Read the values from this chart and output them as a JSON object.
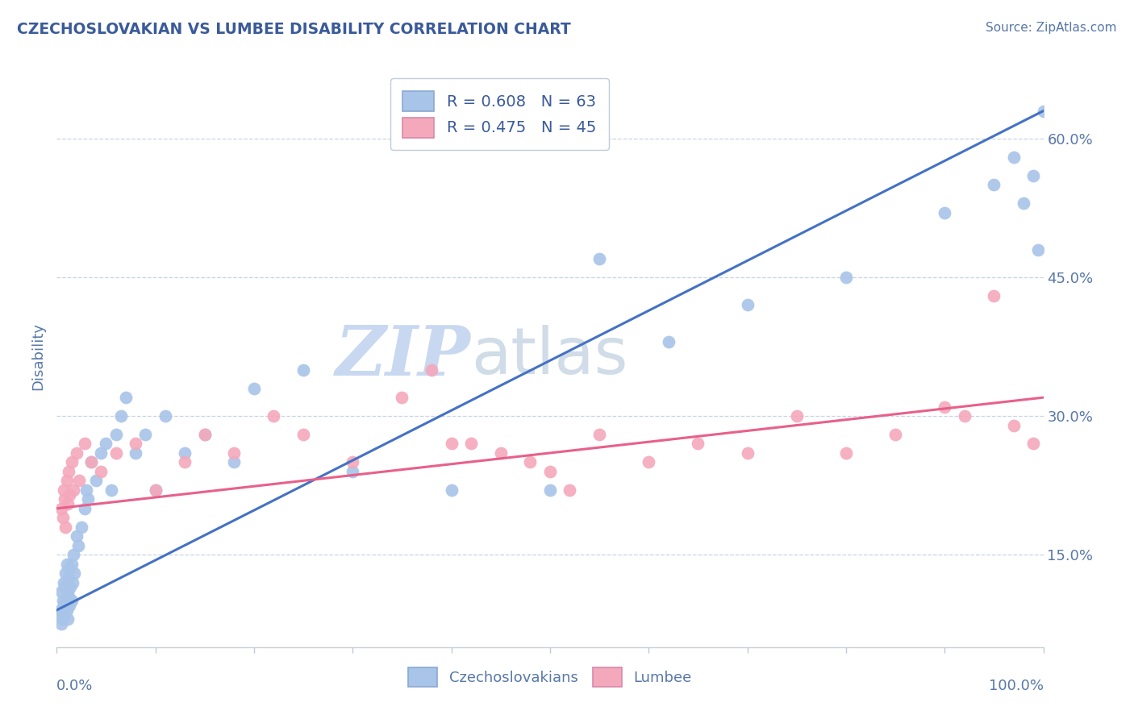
{
  "title": "CZECHOSLOVAKIAN VS LUMBEE DISABILITY CORRELATION CHART",
  "source": "Source: ZipAtlas.com",
  "ylabel": "Disability",
  "xlim": [
    0,
    100
  ],
  "ylim": [
    5,
    68
  ],
  "yticks": [
    15.0,
    30.0,
    45.0,
    60.0
  ],
  "blue_R": 0.608,
  "blue_N": 63,
  "pink_R": 0.475,
  "pink_N": 45,
  "blue_color": "#a8c4e8",
  "pink_color": "#f4a8bc",
  "blue_line_color": "#4472c4",
  "pink_line_color": "#e8608a",
  "watermark_zip": "ZIP",
  "watermark_atlas": "atlas",
  "legend_label_blue": "Czechoslovakians",
  "legend_label_pink": "Lumbee",
  "blue_line_y0": 9.0,
  "blue_line_y100": 63.0,
  "pink_line_y0": 20.0,
  "pink_line_y100": 32.0,
  "blue_scatter_x": [
    0.3,
    0.4,
    0.5,
    0.5,
    0.6,
    0.6,
    0.7,
    0.7,
    0.8,
    0.8,
    0.9,
    0.9,
    1.0,
    1.0,
    1.1,
    1.1,
    1.2,
    1.2,
    1.3,
    1.3,
    1.4,
    1.5,
    1.5,
    1.6,
    1.7,
    1.8,
    2.0,
    2.2,
    2.5,
    2.8,
    3.0,
    3.2,
    3.5,
    4.0,
    4.5,
    5.0,
    5.5,
    6.0,
    6.5,
    7.0,
    8.0,
    9.0,
    10.0,
    11.0,
    13.0,
    15.0,
    18.0,
    20.0,
    25.0,
    30.0,
    40.0,
    50.0,
    55.0,
    62.0,
    70.0,
    80.0,
    90.0,
    95.0,
    97.0,
    98.0,
    99.0,
    99.5,
    100.0
  ],
  "blue_scatter_y": [
    8.5,
    9.0,
    7.5,
    11.0,
    10.0,
    8.0,
    12.0,
    9.5,
    11.5,
    8.5,
    10.0,
    13.0,
    9.0,
    14.0,
    11.0,
    8.0,
    12.5,
    10.5,
    13.5,
    9.5,
    11.5,
    14.0,
    10.0,
    12.0,
    15.0,
    13.0,
    17.0,
    16.0,
    18.0,
    20.0,
    22.0,
    21.0,
    25.0,
    23.0,
    26.0,
    27.0,
    22.0,
    28.0,
    30.0,
    32.0,
    26.0,
    28.0,
    22.0,
    30.0,
    26.0,
    28.0,
    25.0,
    33.0,
    35.0,
    24.0,
    22.0,
    22.0,
    47.0,
    38.0,
    42.0,
    45.0,
    52.0,
    55.0,
    58.0,
    53.0,
    56.0,
    48.0,
    63.0
  ],
  "pink_scatter_x": [
    0.5,
    0.6,
    0.7,
    0.8,
    0.9,
    1.0,
    1.1,
    1.2,
    1.3,
    1.5,
    1.7,
    2.0,
    2.3,
    2.8,
    3.5,
    4.5,
    6.0,
    8.0,
    10.0,
    13.0,
    15.0,
    18.0,
    22.0,
    25.0,
    30.0,
    35.0,
    40.0,
    45.0,
    50.0,
    55.0,
    60.0,
    65.0,
    70.0,
    75.0,
    80.0,
    85.0,
    90.0,
    92.0,
    95.0,
    97.0,
    99.0,
    38.0,
    42.0,
    48.0,
    52.0
  ],
  "pink_scatter_y": [
    20.0,
    19.0,
    22.0,
    21.0,
    18.0,
    23.0,
    20.5,
    24.0,
    21.5,
    25.0,
    22.0,
    26.0,
    23.0,
    27.0,
    25.0,
    24.0,
    26.0,
    27.0,
    22.0,
    25.0,
    28.0,
    26.0,
    30.0,
    28.0,
    25.0,
    32.0,
    27.0,
    26.0,
    24.0,
    28.0,
    25.0,
    27.0,
    26.0,
    30.0,
    26.0,
    28.0,
    31.0,
    30.0,
    43.0,
    29.0,
    27.0,
    35.0,
    27.0,
    25.0,
    22.0
  ],
  "background_color": "#ffffff",
  "grid_color": "#c8d4e4",
  "title_color": "#3a5a9a",
  "axis_color": "#5878a8",
  "watermark_color_zip": "#c8d8f0",
  "watermark_color_atlas": "#d0dce8"
}
